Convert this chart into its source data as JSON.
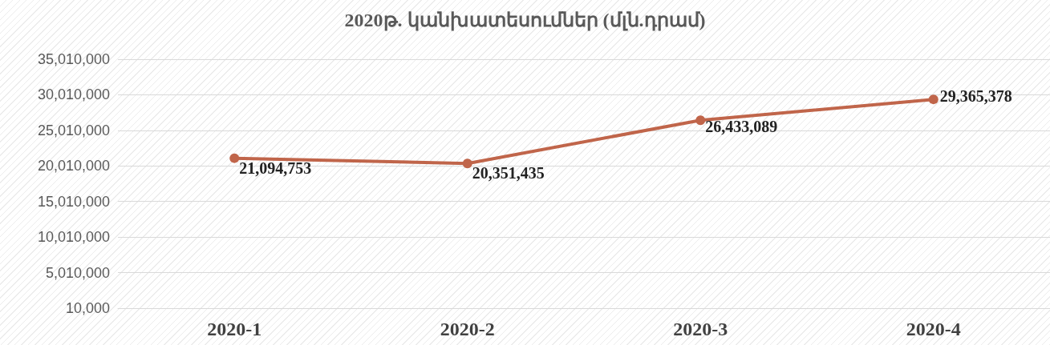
{
  "chart_data": {
    "type": "line",
    "title": "2020թ. կանխատեսումներ (մլն.դրամ)",
    "categories": [
      "2020-1",
      "2020-2",
      "2020-3",
      "2020-4"
    ],
    "series": [
      {
        "color": "#c0654a",
        "values": [
          21094753,
          20351435,
          26433089,
          29365378
        ],
        "value_labels": [
          "21,094,753",
          "20,351,435",
          "26,433,089",
          "29,365,378"
        ]
      }
    ],
    "ylim": [
      10000,
      35010000
    ],
    "yticks": [
      {
        "value": 10000,
        "label": "10,000"
      },
      {
        "value": 5010000,
        "label": "5,010,000"
      },
      {
        "value": 10010000,
        "label": "10,010,000"
      },
      {
        "value": 15010000,
        "label": "15,010,000"
      },
      {
        "value": 20010000,
        "label": "20,010,000"
      },
      {
        "value": 25010000,
        "label": "25,010,000"
      },
      {
        "value": 30010000,
        "label": "30,010,000"
      },
      {
        "value": 35010000,
        "label": "35,010,000"
      }
    ],
    "grid": "y",
    "marker": "circle",
    "line_style": "solid"
  }
}
